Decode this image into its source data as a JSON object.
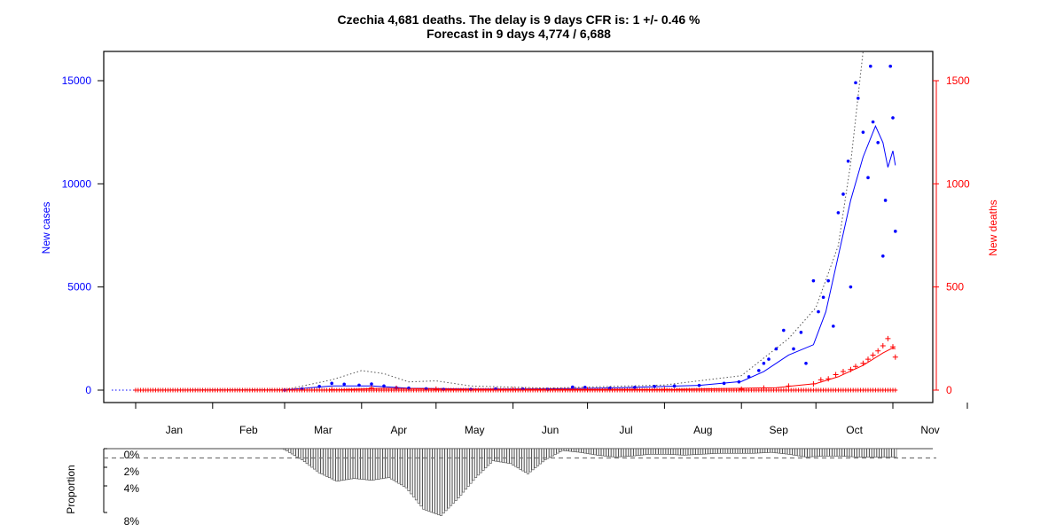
{
  "chart_data": {
    "type": "line",
    "title": "Czechia 4,681 deaths. The delay is 9 days CFR is: 1 +/- 0.46 %",
    "subtitle": "Forecast in 9 days 4,774 / 6,688",
    "ylabel_left": "New cases",
    "ylabel_right": "New deaths",
    "ylim_left": [
      0,
      16000
    ],
    "ylim_right": [
      0,
      1600
    ],
    "yticks_left": [
      "0",
      "5000",
      "10000",
      "15000"
    ],
    "yticks_right": [
      "0",
      "500",
      "1000",
      "1500"
    ],
    "months": [
      "Jan",
      "Feb",
      "Mar",
      "Apr",
      "May",
      "Jun",
      "Jul",
      "Aug",
      "Sep",
      "Oct",
      "Nov"
    ],
    "colors": {
      "cases": "#0000ff",
      "deaths": "#ff0000",
      "dotted": "#444444"
    },
    "daily_cases": [
      [
        "2020-03-01",
        5
      ],
      [
        "2020-03-08",
        60
      ],
      [
        "2020-03-15",
        180
      ],
      [
        "2020-03-20",
        330
      ],
      [
        "2020-03-25",
        290
      ],
      [
        "2020-03-31",
        240
      ],
      [
        "2020-04-05",
        300
      ],
      [
        "2020-04-10",
        200
      ],
      [
        "2020-04-15",
        110
      ],
      [
        "2020-04-20",
        100
      ],
      [
        "2020-04-27",
        70
      ],
      [
        "2020-05-04",
        40
      ],
      [
        "2020-05-15",
        40
      ],
      [
        "2020-05-25",
        60
      ],
      [
        "2020-06-05",
        50
      ],
      [
        "2020-06-15",
        40
      ],
      [
        "2020-06-25",
        150
      ],
      [
        "2020-06-30",
        140
      ],
      [
        "2020-07-10",
        100
      ],
      [
        "2020-07-20",
        130
      ],
      [
        "2020-07-28",
        180
      ],
      [
        "2020-08-05",
        200
      ],
      [
        "2020-08-15",
        230
      ],
      [
        "2020-08-25",
        330
      ],
      [
        "2020-08-31",
        400
      ],
      [
        "2020-09-04",
        650
      ],
      [
        "2020-09-08",
        950
      ],
      [
        "2020-09-10",
        1300
      ],
      [
        "2020-09-12",
        1500
      ],
      [
        "2020-09-15",
        2000
      ],
      [
        "2020-09-18",
        2900
      ],
      [
        "2020-09-22",
        2000
      ],
      [
        "2020-09-25",
        2800
      ],
      [
        "2020-09-27",
        1300
      ],
      [
        "2020-09-30",
        5300
      ],
      [
        "2020-10-02",
        3800
      ],
      [
        "2020-10-04",
        4500
      ],
      [
        "2020-10-06",
        5300
      ],
      [
        "2020-10-08",
        3100
      ],
      [
        "2020-10-10",
        8600
      ],
      [
        "2020-10-12",
        9500
      ],
      [
        "2020-10-14",
        11100
      ],
      [
        "2020-10-15",
        5000
      ],
      [
        "2020-10-17",
        14900
      ],
      [
        "2020-10-18",
        14150
      ],
      [
        "2020-10-20",
        12500
      ],
      [
        "2020-10-22",
        10300
      ],
      [
        "2020-10-23",
        15700
      ],
      [
        "2020-10-24",
        13000
      ],
      [
        "2020-10-26",
        12000
      ],
      [
        "2020-10-28",
        6500
      ],
      [
        "2020-10-29",
        9200
      ],
      [
        "2020-10-31",
        15700
      ],
      [
        "2020-11-01",
        13200
      ],
      [
        "2020-11-02",
        7700
      ]
    ],
    "daily_deaths": [
      [
        "2020-03-20",
        2
      ],
      [
        "2020-04-05",
        10
      ],
      [
        "2020-04-15",
        9
      ],
      [
        "2020-05-01",
        5
      ],
      [
        "2020-06-01",
        2
      ],
      [
        "2020-07-01",
        2
      ],
      [
        "2020-08-01",
        3
      ],
      [
        "2020-09-01",
        5
      ],
      [
        "2020-09-10",
        10
      ],
      [
        "2020-09-20",
        20
      ],
      [
        "2020-09-30",
        30
      ],
      [
        "2020-10-03",
        50
      ],
      [
        "2020-10-06",
        55
      ],
      [
        "2020-10-09",
        75
      ],
      [
        "2020-10-12",
        90
      ],
      [
        "2020-10-15",
        100
      ],
      [
        "2020-10-17",
        115
      ],
      [
        "2020-10-20",
        130
      ],
      [
        "2020-10-22",
        150
      ],
      [
        "2020-10-24",
        170
      ],
      [
        "2020-10-26",
        190
      ],
      [
        "2020-10-28",
        215
      ],
      [
        "2020-10-30",
        250
      ],
      [
        "2020-11-01",
        210
      ],
      [
        "2020-11-02",
        160
      ]
    ],
    "cases_smoothed": [
      [
        "2020-01-01",
        0
      ],
      [
        "2020-03-01",
        10
      ],
      [
        "2020-03-20",
        200
      ],
      [
        "2020-04-05",
        200
      ],
      [
        "2020-04-20",
        90
      ],
      [
        "2020-05-15",
        50
      ],
      [
        "2020-06-15",
        60
      ],
      [
        "2020-07-15",
        120
      ],
      [
        "2020-08-15",
        230
      ],
      [
        "2020-09-01",
        420
      ],
      [
        "2020-09-10",
        900
      ],
      [
        "2020-09-20",
        1700
      ],
      [
        "2020-09-30",
        2200
      ],
      [
        "2020-10-05",
        3800
      ],
      [
        "2020-10-10",
        6500
      ],
      [
        "2020-10-15",
        9200
      ],
      [
        "2020-10-20",
        11300
      ],
      [
        "2020-10-25",
        12800
      ],
      [
        "2020-10-28",
        12000
      ],
      [
        "2020-10-30",
        10800
      ],
      [
        "2020-11-01",
        11600
      ],
      [
        "2020-11-02",
        10900
      ]
    ],
    "deaths_smoothed": [
      [
        "2020-01-01",
        0
      ],
      [
        "2020-03-20",
        1
      ],
      [
        "2020-04-10",
        9
      ],
      [
        "2020-05-10",
        4
      ],
      [
        "2020-08-01",
        3
      ],
      [
        "2020-09-15",
        12
      ],
      [
        "2020-10-01",
        32
      ],
      [
        "2020-10-10",
        65
      ],
      [
        "2020-10-20",
        120
      ],
      [
        "2020-10-28",
        180
      ],
      [
        "2020-11-01",
        205
      ],
      [
        "2020-11-02",
        200
      ]
    ],
    "cases_dotted": [
      [
        "2020-01-01",
        0
      ],
      [
        "2020-03-01",
        20
      ],
      [
        "2020-03-20",
        500
      ],
      [
        "2020-04-01",
        950
      ],
      [
        "2020-04-10",
        800
      ],
      [
        "2020-04-20",
        400
      ],
      [
        "2020-05-01",
        450
      ],
      [
        "2020-05-15",
        200
      ],
      [
        "2020-06-15",
        100
      ],
      [
        "2020-08-01",
        250
      ],
      [
        "2020-09-01",
        700
      ],
      [
        "2020-09-20",
        2500
      ],
      [
        "2020-10-01",
        4000
      ],
      [
        "2020-10-10",
        7000
      ],
      [
        "2020-10-15",
        11000
      ],
      [
        "2020-10-20",
        16500
      ]
    ],
    "proportion_label": "Proportion",
    "proportion_ticks": [
      "0%",
      "2%",
      "4%",
      "8%"
    ],
    "proportion_reference": 1,
    "proportion_weekly": [
      [
        "2020-03-01",
        0.1
      ],
      [
        "2020-03-08",
        1.2
      ],
      [
        "2020-03-15",
        2.6
      ],
      [
        "2020-03-22",
        3.5
      ],
      [
        "2020-03-29",
        3.2
      ],
      [
        "2020-04-05",
        3.4
      ],
      [
        "2020-04-12",
        3.1
      ],
      [
        "2020-04-19",
        4.2
      ],
      [
        "2020-04-26",
        6.5
      ],
      [
        "2020-05-03",
        7.2
      ],
      [
        "2020-05-10",
        5.3
      ],
      [
        "2020-05-17",
        3.1
      ],
      [
        "2020-05-24",
        1.3
      ],
      [
        "2020-05-31",
        1.6
      ],
      [
        "2020-06-07",
        2.7
      ],
      [
        "2020-06-14",
        1.2
      ],
      [
        "2020-06-21",
        0.2
      ],
      [
        "2020-06-28",
        0.4
      ],
      [
        "2020-07-05",
        0.7
      ],
      [
        "2020-07-12",
        0.9
      ],
      [
        "2020-07-19",
        0.8
      ],
      [
        "2020-07-26",
        0.6
      ],
      [
        "2020-08-02",
        0.6
      ],
      [
        "2020-08-09",
        0.7
      ],
      [
        "2020-08-16",
        0.6
      ],
      [
        "2020-08-23",
        0.5
      ],
      [
        "2020-08-30",
        0.5
      ],
      [
        "2020-09-06",
        0.5
      ],
      [
        "2020-09-13",
        0.4
      ],
      [
        "2020-09-20",
        0.6
      ],
      [
        "2020-09-27",
        0.9
      ],
      [
        "2020-10-04",
        0.8
      ],
      [
        "2020-10-11",
        0.8
      ],
      [
        "2020-10-18",
        0.9
      ],
      [
        "2020-10-25",
        0.9
      ],
      [
        "2020-11-02",
        0.9
      ]
    ]
  }
}
